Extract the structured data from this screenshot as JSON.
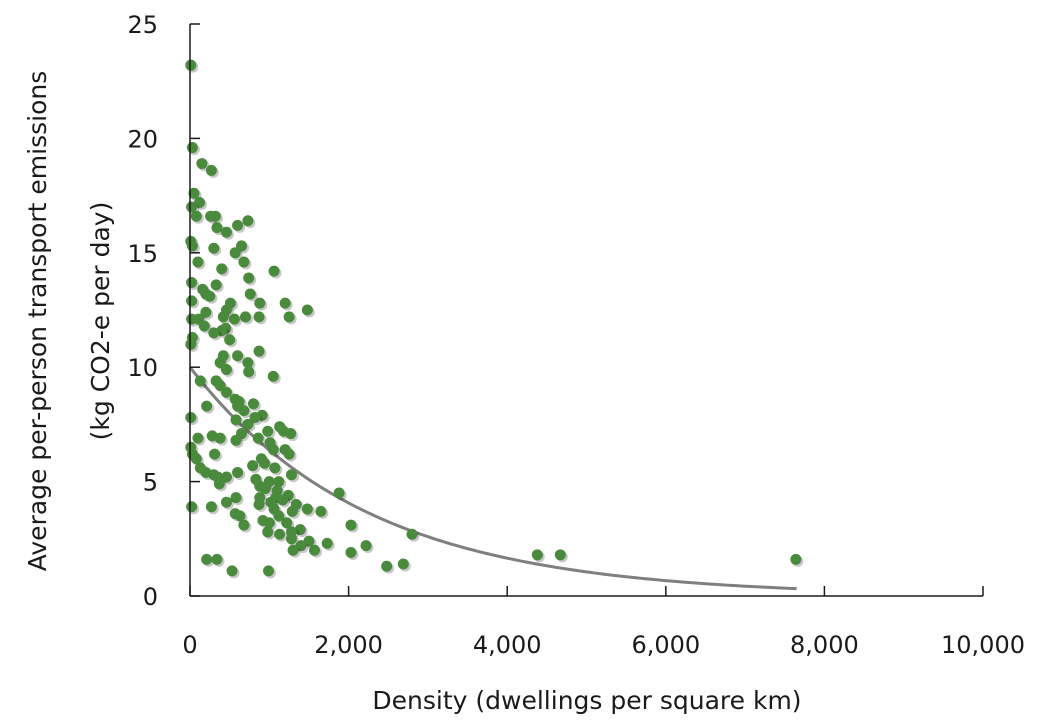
{
  "chart_data": {
    "type": "scatter",
    "title": "",
    "xlabel": "Density (dwellings per square km)",
    "ylabel_line1": "Average per-person transport emissions",
    "ylabel_line2": "(kg CO2-e per day)",
    "xlim": [
      0,
      10000
    ],
    "ylim": [
      0,
      25
    ],
    "x_ticks": [
      0,
      2000,
      4000,
      6000,
      8000,
      10000
    ],
    "x_tick_labels": [
      "0",
      "2,000",
      "4,000",
      "6,000",
      "8,000",
      "10,000"
    ],
    "y_ticks": [
      0,
      5,
      10,
      15,
      20,
      25
    ],
    "y_tick_labels": [
      "0",
      "5",
      "10",
      "15",
      "20",
      "25"
    ],
    "grid": false,
    "legend": "none",
    "colors": {
      "points": "#4a8a3c",
      "trendline": "#7f7f7f",
      "axis": "#1a1a1a"
    },
    "trendline": {
      "type": "exponential",
      "a": 10.0,
      "b": -0.00045,
      "x_range": [
        0,
        7650
      ]
    },
    "series": [
      {
        "points": [
          [
            10,
            23.2
          ],
          [
            30,
            19.6
          ],
          [
            150,
            18.9
          ],
          [
            270,
            18.6
          ],
          [
            50,
            17.6
          ],
          [
            120,
            17.2
          ],
          [
            20,
            17.0
          ],
          [
            80,
            16.6
          ],
          [
            260,
            16.6
          ],
          [
            320,
            16.6
          ],
          [
            730,
            16.4
          ],
          [
            600,
            16.2
          ],
          [
            340,
            16.1
          ],
          [
            460,
            15.9
          ],
          [
            10,
            15.5
          ],
          [
            30,
            15.3
          ],
          [
            300,
            15.2
          ],
          [
            650,
            15.3
          ],
          [
            570,
            15.0
          ],
          [
            680,
            14.6
          ],
          [
            100,
            14.6
          ],
          [
            1060,
            14.2
          ],
          [
            400,
            14.3
          ],
          [
            740,
            13.9
          ],
          [
            20,
            13.7
          ],
          [
            330,
            13.6
          ],
          [
            160,
            13.4
          ],
          [
            200,
            13.2
          ],
          [
            760,
            13.2
          ],
          [
            250,
            13.1
          ],
          [
            20,
            12.9
          ],
          [
            510,
            12.8
          ],
          [
            1200,
            12.8
          ],
          [
            880,
            12.8
          ],
          [
            460,
            12.5
          ],
          [
            1480,
            12.5
          ],
          [
            200,
            12.4
          ],
          [
            420,
            12.2
          ],
          [
            870,
            12.2
          ],
          [
            1250,
            12.2
          ],
          [
            20,
            12.1
          ],
          [
            110,
            12.1
          ],
          [
            700,
            12.2
          ],
          [
            560,
            12.1
          ],
          [
            180,
            11.8
          ],
          [
            450,
            11.7
          ],
          [
            400,
            11.6
          ],
          [
            300,
            11.5
          ],
          [
            30,
            11.3
          ],
          [
            500,
            11.2
          ],
          [
            10,
            11.0
          ],
          [
            870,
            10.7
          ],
          [
            600,
            10.5
          ],
          [
            420,
            10.5
          ],
          [
            380,
            10.2
          ],
          [
            730,
            10.2
          ],
          [
            460,
            9.9
          ],
          [
            740,
            9.8
          ],
          [
            1050,
            9.6
          ],
          [
            330,
            9.4
          ],
          [
            130,
            9.4
          ],
          [
            380,
            9.2
          ],
          [
            460,
            8.9
          ],
          [
            570,
            8.6
          ],
          [
            620,
            8.5
          ],
          [
            800,
            8.4
          ],
          [
            210,
            8.3
          ],
          [
            600,
            8.3
          ],
          [
            680,
            8.1
          ],
          [
            910,
            7.9
          ],
          [
            820,
            7.8
          ],
          [
            10,
            7.8
          ],
          [
            580,
            7.7
          ],
          [
            730,
            7.5
          ],
          [
            1130,
            7.4
          ],
          [
            1180,
            7.2
          ],
          [
            980,
            7.2
          ],
          [
            1270,
            7.1
          ],
          [
            650,
            7.1
          ],
          [
            280,
            7.0
          ],
          [
            380,
            6.9
          ],
          [
            100,
            6.9
          ],
          [
            860,
            6.9
          ],
          [
            580,
            6.8
          ],
          [
            1010,
            6.7
          ],
          [
            10,
            6.5
          ],
          [
            1200,
            6.4
          ],
          [
            1050,
            6.4
          ],
          [
            30,
            6.2
          ],
          [
            310,
            6.2
          ],
          [
            1250,
            6.2
          ],
          [
            80,
            6.0
          ],
          [
            900,
            6.0
          ],
          [
            940,
            5.8
          ],
          [
            790,
            5.7
          ],
          [
            1070,
            5.6
          ],
          [
            130,
            5.6
          ],
          [
            600,
            5.4
          ],
          [
            200,
            5.4
          ],
          [
            300,
            5.3
          ],
          [
            1280,
            5.3
          ],
          [
            350,
            5.2
          ],
          [
            460,
            5.2
          ],
          [
            830,
            5.1
          ],
          [
            1000,
            5.0
          ],
          [
            1120,
            5.0
          ],
          [
            370,
            4.9
          ],
          [
            880,
            4.8
          ],
          [
            950,
            4.7
          ],
          [
            1100,
            4.6
          ],
          [
            1880,
            4.5
          ],
          [
            1240,
            4.4
          ],
          [
            880,
            4.3
          ],
          [
            1080,
            4.3
          ],
          [
            580,
            4.3
          ],
          [
            1170,
            4.2
          ],
          [
            1020,
            4.1
          ],
          [
            460,
            4.1
          ],
          [
            1340,
            4.0
          ],
          [
            870,
            4.0
          ],
          [
            270,
            3.9
          ],
          [
            20,
            3.9
          ],
          [
            1060,
            3.8
          ],
          [
            1480,
            3.8
          ],
          [
            1650,
            3.7
          ],
          [
            1290,
            3.7
          ],
          [
            570,
            3.6
          ],
          [
            630,
            3.5
          ],
          [
            1120,
            3.5
          ],
          [
            920,
            3.3
          ],
          [
            1000,
            3.2
          ],
          [
            1220,
            3.2
          ],
          [
            680,
            3.1
          ],
          [
            2030,
            3.1
          ],
          [
            1390,
            2.9
          ],
          [
            1280,
            2.8
          ],
          [
            980,
            2.8
          ],
          [
            1130,
            2.7
          ],
          [
            2800,
            2.7
          ],
          [
            1280,
            2.5
          ],
          [
            1500,
            2.4
          ],
          [
            1730,
            2.3
          ],
          [
            2220,
            2.2
          ],
          [
            1400,
            2.2
          ],
          [
            1300,
            2.0
          ],
          [
            1570,
            2.0
          ],
          [
            2030,
            1.9
          ],
          [
            4380,
            1.8
          ],
          [
            4670,
            1.8
          ],
          [
            210,
            1.6
          ],
          [
            340,
            1.6
          ],
          [
            7640,
            1.6
          ],
          [
            2690,
            1.4
          ],
          [
            2480,
            1.3
          ],
          [
            530,
            1.1
          ],
          [
            990,
            1.1
          ]
        ]
      }
    ]
  }
}
